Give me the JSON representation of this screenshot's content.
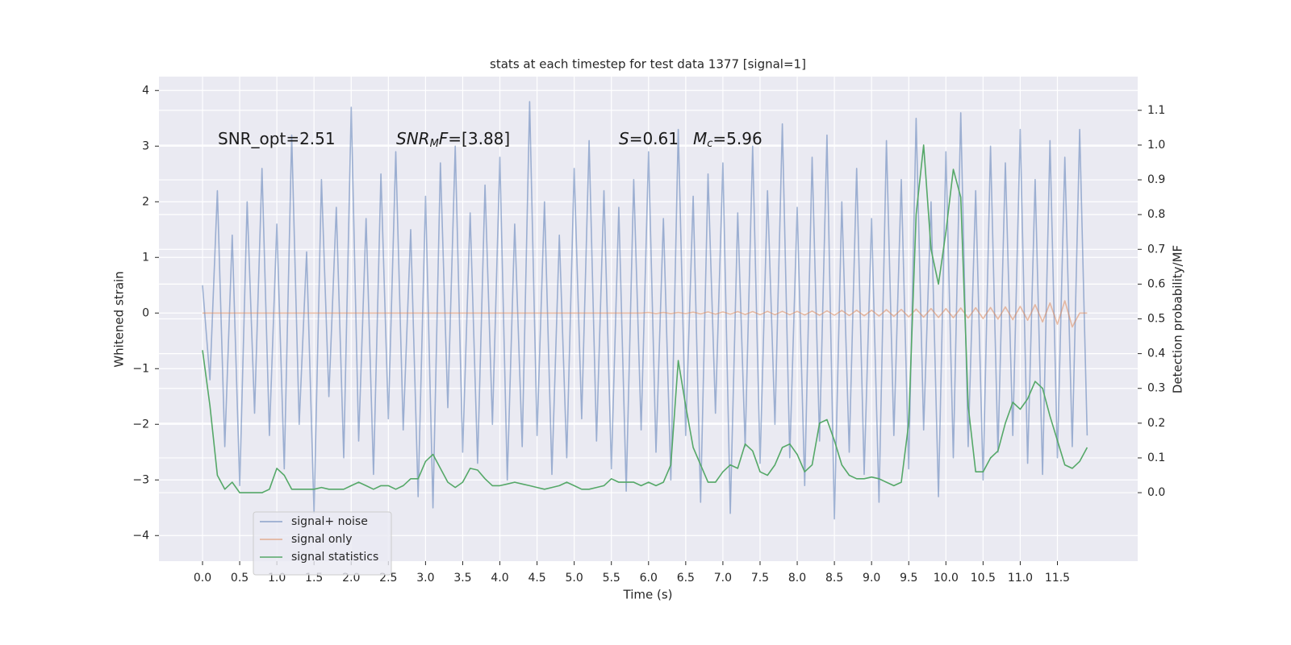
{
  "chart_data": {
    "type": "line",
    "title": "stats at each timestep for test data 1377 [signal=1]",
    "xlabel": "Time (s)",
    "ylabel": "Whitened strain",
    "y2label": "Detection probability/MF",
    "grid": true,
    "legend": "lower left",
    "xlim": [
      -0.586,
      12.58
    ],
    "ylim": [
      -4.46,
      4.25
    ],
    "y2lim": [
      -0.197,
      1.197
    ],
    "xticks": [
      {
        "value": 0,
        "label": "0.0"
      },
      0.5,
      {
        "value": 1,
        "label": "1.0"
      },
      1.5,
      {
        "value": 2,
        "label": "2.0"
      },
      2.5,
      {
        "value": 3,
        "label": "3.0"
      },
      3.5,
      {
        "value": 4,
        "label": "4.0"
      },
      4.5,
      {
        "value": 5,
        "label": "5.0"
      },
      5.5,
      {
        "value": 6,
        "label": "6.0"
      },
      6.5,
      {
        "value": 7,
        "label": "7.0"
      },
      7.5,
      {
        "value": 8,
        "label": "8.0"
      },
      8.5,
      {
        "value": 9,
        "label": "9.0"
      },
      9.5,
      {
        "value": 10,
        "label": "10.0"
      },
      10.5,
      {
        "value": 11,
        "label": "11.0"
      },
      11.5
    ],
    "yticks": [
      {
        "value": -4,
        "label": "−4"
      },
      {
        "value": -3,
        "label": "−3"
      },
      {
        "value": -2,
        "label": "−2"
      },
      {
        "value": -1,
        "label": "−1"
      },
      0,
      1,
      2,
      3,
      4
    ],
    "y2ticks": [
      {
        "value": 0,
        "label": "0.0"
      },
      0.1,
      0.2,
      0.3,
      0.4,
      0.5,
      0.6,
      0.7,
      0.8,
      0.9,
      {
        "value": 1,
        "label": "1.0"
      },
      1.1
    ],
    "annotations": [
      [
        {
          "t": "SNR_opt=2.51",
          "style": "normal"
        }
      ],
      [
        {
          "t": "SNR",
          "style": "italic"
        },
        {
          "t": "M",
          "style": "sub"
        },
        {
          "t": "F",
          "style": "italic"
        },
        {
          "t": "=[3.88]",
          "style": "normal"
        }
      ],
      [
        {
          "t": "S",
          "style": "italic"
        },
        {
          "t": "=0.61",
          "style": "normal"
        }
      ],
      [
        {
          "t": "M",
          "style": "italic"
        },
        {
          "t": "c",
          "style": "sub"
        },
        {
          "t": "=5.96",
          "style": "normal"
        }
      ]
    ],
    "x": [
      0,
      0.1,
      0.2,
      0.3,
      0.4,
      0.5,
      0.6,
      0.7,
      0.8,
      0.9,
      1,
      1.1,
      1.2,
      1.3,
      1.4,
      1.5,
      1.6,
      1.7,
      1.8,
      1.9,
      2,
      2.1,
      2.2,
      2.3,
      2.4,
      2.5,
      2.6,
      2.7,
      2.8,
      2.9,
      3,
      3.1,
      3.2,
      3.3,
      3.4,
      3.5,
      3.6,
      3.7,
      3.8,
      3.9,
      4,
      4.1,
      4.2,
      4.3,
      4.4,
      4.5,
      4.6,
      4.7,
      4.8,
      4.9,
      5,
      5.1,
      5.2,
      5.3,
      5.4,
      5.5,
      5.6,
      5.7,
      5.8,
      5.9,
      6,
      6.1,
      6.2,
      6.3,
      6.4,
      6.5,
      6.6,
      6.7,
      6.8,
      6.9,
      7,
      7.1,
      7.2,
      7.3,
      7.4,
      7.5,
      7.6,
      7.7,
      7.8,
      7.9,
      8,
      8.1,
      8.2,
      8.3,
      8.4,
      8.5,
      8.6,
      8.7,
      8.8,
      8.9,
      9,
      9.1,
      9.2,
      9.3,
      9.4,
      9.5,
      9.6,
      9.7,
      9.8,
      9.9,
      10,
      10.1,
      10.2,
      10.3,
      10.4,
      10.5,
      10.6,
      10.7,
      10.8,
      10.9,
      11,
      11.1,
      11.2,
      11.3,
      11.4,
      11.5,
      11.6,
      11.7,
      11.8,
      11.9
    ],
    "series": [
      {
        "name": "signal+ noise",
        "color": "#4c72b0",
        "values": [
          0.5,
          -1.2,
          2.2,
          -2.4,
          1.4,
          -3.1,
          2.0,
          -1.8,
          2.6,
          -2.2,
          1.6,
          -2.8,
          3.2,
          -2.0,
          1.1,
          -3.6,
          2.4,
          -1.5,
          1.9,
          -2.6,
          3.7,
          -2.3,
          1.7,
          -2.9,
          2.5,
          -1.9,
          2.9,
          -2.1,
          1.5,
          -3.3,
          2.1,
          -3.5,
          2.7,
          -1.7,
          3.0,
          -2.5,
          1.8,
          -2.7,
          2.3,
          -2.0,
          2.8,
          -3.0,
          1.6,
          -2.4,
          3.8,
          -2.2,
          2.0,
          -2.9,
          1.4,
          -2.6,
          2.6,
          -1.9,
          3.1,
          -2.3,
          2.2,
          -2.8,
          1.9,
          -3.2,
          2.4,
          -2.1,
          2.9,
          -2.5,
          1.7,
          -3.0,
          3.3,
          -2.2,
          2.1,
          -3.4,
          2.5,
          -1.8,
          2.7,
          -3.6,
          1.8,
          -2.4,
          3.0,
          -2.7,
          2.2,
          -2.0,
          3.4,
          -2.6,
          1.9,
          -3.1,
          2.8,
          -2.3,
          3.2,
          -3.7,
          2.0,
          -2.5,
          2.6,
          -2.9,
          1.7,
          -3.4,
          3.1,
          -2.2,
          2.4,
          -2.8,
          3.5,
          -2.1,
          2.0,
          -3.3,
          2.9,
          -2.6,
          3.6,
          -2.4,
          2.2,
          -3.0,
          3.0,
          -2.5,
          2.7,
          -2.2,
          3.3,
          -2.7,
          2.4,
          -2.9,
          3.1,
          -2.6,
          2.8,
          -2.4,
          3.3,
          -2.2
        ]
      },
      {
        "name": "signal only",
        "color": "#dd8452",
        "values": [
          0,
          0,
          0,
          0,
          0,
          0,
          0,
          0,
          0,
          0,
          0,
          0,
          0,
          0,
          0,
          0,
          0,
          0,
          0,
          0,
          0,
          0,
          0,
          0,
          0,
          0,
          0,
          0,
          0,
          0,
          0,
          0,
          0,
          0,
          0,
          0,
          0,
          0,
          0,
          0,
          0,
          0,
          0,
          0,
          0,
          0,
          0,
          0,
          0,
          0,
          0,
          0,
          0,
          0,
          0,
          0,
          0,
          0,
          0,
          0,
          0.01,
          -0.01,
          0.01,
          -0.01,
          0.01,
          -0.01,
          0.015,
          -0.015,
          0.02,
          -0.02,
          0.02,
          -0.02,
          0.025,
          -0.025,
          0.025,
          -0.03,
          0.03,
          -0.03,
          0.03,
          -0.03,
          0.03,
          -0.035,
          0.035,
          -0.04,
          0.04,
          -0.04,
          0.045,
          -0.045,
          0.05,
          -0.05,
          0.05,
          -0.055,
          0.06,
          -0.06,
          0.065,
          -0.07,
          0.07,
          -0.075,
          0.08,
          -0.08,
          0.08,
          -0.085,
          0.09,
          -0.09,
          0.095,
          -0.1,
          0.1,
          -0.11,
          0.11,
          -0.12,
          0.12,
          -0.13,
          0.15,
          -0.16,
          0.18,
          -0.2,
          0.22,
          -0.25,
          0,
          0
        ]
      },
      {
        "name": "signal statistics",
        "color": "#55a868",
        "axis": "y2",
        "values": [
          0.41,
          0.25,
          0.05,
          0.01,
          0.03,
          0.0,
          0.0,
          0.0,
          0.0,
          0.01,
          0.07,
          0.05,
          0.01,
          0.01,
          0.01,
          0.01,
          0.015,
          0.01,
          0.01,
          0.01,
          0.02,
          0.03,
          0.02,
          0.01,
          0.02,
          0.02,
          0.01,
          0.02,
          0.04,
          0.04,
          0.09,
          0.11,
          0.07,
          0.03,
          0.015,
          0.03,
          0.07,
          0.065,
          0.04,
          0.02,
          0.02,
          0.025,
          0.03,
          0.025,
          0.02,
          0.015,
          0.01,
          0.015,
          0.02,
          0.03,
          0.02,
          0.01,
          0.01,
          0.015,
          0.02,
          0.04,
          0.03,
          0.03,
          0.03,
          0.02,
          0.03,
          0.02,
          0.03,
          0.08,
          0.38,
          0.25,
          0.13,
          0.08,
          0.03,
          0.03,
          0.06,
          0.08,
          0.07,
          0.14,
          0.12,
          0.06,
          0.05,
          0.08,
          0.13,
          0.14,
          0.11,
          0.06,
          0.08,
          0.2,
          0.21,
          0.15,
          0.08,
          0.05,
          0.04,
          0.04,
          0.045,
          0.04,
          0.03,
          0.02,
          0.03,
          0.2,
          0.8,
          1.0,
          0.7,
          0.6,
          0.75,
          0.93,
          0.85,
          0.25,
          0.06,
          0.06,
          0.1,
          0.12,
          0.2,
          0.26,
          0.24,
          0.27,
          0.32,
          0.3,
          0.22,
          0.15,
          0.08,
          0.07,
          0.09,
          0.13
        ]
      }
    ]
  }
}
